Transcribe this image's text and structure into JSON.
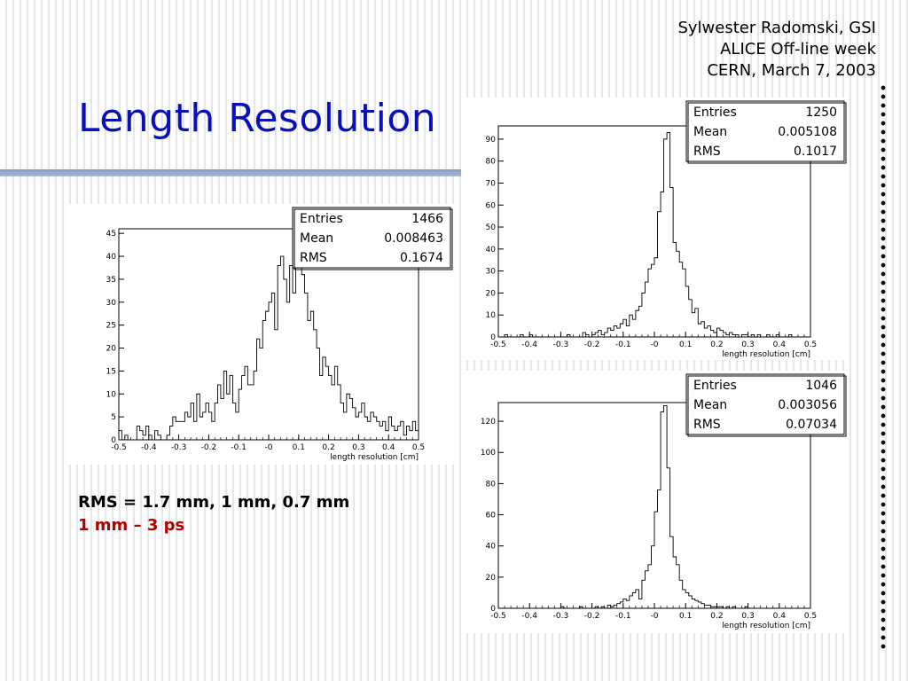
{
  "slide": {
    "title": "Length Resolution",
    "credits": [
      "Sylwester Radomski, GSI",
      "ALICE Off-line week",
      "CERN, March 7, 2003"
    ],
    "summary": [
      "RMS = 1.7 mm, 1 mm, 0.7 mm",
      "1 mm – 3 ps"
    ],
    "colors": {
      "title": "#0a10b8",
      "highlight": "#b00000",
      "bar": "#7f9cbf"
    }
  },
  "chart_data": [
    {
      "type": "histogram",
      "xlabel": "length resolution [cm]",
      "xlim": [
        -0.5,
        0.5
      ],
      "ylim": [
        0,
        46
      ],
      "xticks": [
        "-0.5",
        "-0.4",
        "-0.3",
        "-0.2",
        "-0.1",
        "-0",
        "0.1",
        "0.2",
        "0.3",
        "0.4",
        "0.5"
      ],
      "yticks": [
        "0",
        "5",
        "10",
        "15",
        "20",
        "25",
        "30",
        "35",
        "40",
        "45"
      ],
      "stats": [
        [
          "Entries",
          "1466"
        ],
        [
          "Mean",
          "0.008463"
        ],
        [
          "RMS",
          "0.1674"
        ]
      ],
      "bin_width": 0.01,
      "values": [
        2,
        0,
        1,
        0,
        0,
        0,
        3,
        2,
        1,
        3,
        1,
        0,
        2,
        1,
        0,
        0,
        1,
        3,
        5,
        4,
        4,
        4,
        6,
        5,
        8,
        4,
        10,
        5,
        6,
        8,
        6,
        4,
        8,
        12,
        9,
        15,
        10,
        14,
        8,
        6,
        11,
        14,
        16,
        12,
        12,
        15,
        22,
        20,
        26,
        28,
        30,
        32,
        24,
        38,
        40,
        35,
        30,
        38,
        32,
        38,
        43,
        36,
        32,
        26,
        28,
        24,
        20,
        14,
        18,
        16,
        14,
        12,
        16,
        12,
        8,
        6,
        10,
        9,
        7,
        5,
        6,
        8,
        5,
        4,
        6,
        5,
        4,
        3,
        4,
        2,
        5,
        3,
        2,
        3,
        4,
        1,
        3,
        2,
        4,
        2
      ]
    },
    {
      "type": "histogram",
      "xlabel": "length resolution [cm]",
      "xlim": [
        -0.5,
        0.5
      ],
      "ylim": [
        0,
        96
      ],
      "xticks": [
        "-0.5",
        "-0.4",
        "-0.3",
        "-0.2",
        "-0.1",
        "-0",
        "0.1",
        "0.2",
        "0.3",
        "0.4",
        "0.5"
      ],
      "yticks": [
        "0",
        "10",
        "20",
        "30",
        "40",
        "50",
        "60",
        "70",
        "80",
        "90"
      ],
      "stats": [
        [
          "Entries",
          "1250"
        ],
        [
          "Mean",
          "0.005108"
        ],
        [
          "RMS",
          "0.1017"
        ]
      ],
      "bin_width": 0.01,
      "values": [
        0,
        0,
        1,
        0,
        0,
        0,
        0,
        1,
        0,
        0,
        1,
        0,
        0,
        0,
        0,
        0,
        0,
        0,
        0,
        0,
        0,
        0,
        1,
        0,
        0,
        0,
        0,
        2,
        1,
        0,
        1,
        2,
        3,
        1,
        2,
        4,
        3,
        5,
        4,
        6,
        8,
        5,
        10,
        8,
        12,
        14,
        20,
        25,
        31,
        33,
        36,
        57,
        66,
        90,
        93,
        68,
        43,
        39,
        34,
        31,
        23,
        17,
        11,
        13,
        6,
        7,
        4,
        5,
        3,
        2,
        4,
        3,
        2,
        1,
        2,
        1,
        1,
        0,
        1,
        1,
        0,
        1,
        0,
        1,
        0,
        0,
        1,
        0,
        0,
        1,
        0,
        0,
        0,
        1,
        0,
        0,
        0,
        0,
        0,
        0
      ]
    },
    {
      "type": "histogram",
      "xlabel": "length resolution [cm]",
      "xlim": [
        -0.5,
        0.5
      ],
      "ylim": [
        0,
        132
      ],
      "xticks": [
        "-0.5",
        "-0.4",
        "-0.3",
        "-0.2",
        "-0.1",
        "-0",
        "0.1",
        "0.2",
        "0.3",
        "0.4",
        "0.5"
      ],
      "yticks": [
        "0",
        "20",
        "40",
        "60",
        "80",
        "100",
        "120"
      ],
      "stats": [
        [
          "Entries",
          "1046"
        ],
        [
          "Mean",
          "0.003056"
        ],
        [
          "RMS",
          "0.07034"
        ]
      ],
      "bin_width": 0.01,
      "values": [
        0,
        0,
        0,
        0,
        0,
        0,
        0,
        0,
        0,
        0,
        0,
        0,
        0,
        0,
        0,
        0,
        0,
        0,
        0,
        0,
        1,
        0,
        0,
        0,
        0,
        0,
        1,
        0,
        0,
        0,
        0,
        1,
        0,
        1,
        0,
        2,
        1,
        2,
        3,
        4,
        6,
        5,
        8,
        10,
        12,
        6,
        18,
        24,
        28,
        40,
        62,
        76,
        126,
        130,
        90,
        46,
        33,
        28,
        18,
        12,
        10,
        8,
        6,
        5,
        4,
        3,
        2,
        2,
        1,
        1,
        1,
        1,
        0,
        1,
        0,
        1,
        0,
        0,
        0,
        1,
        0,
        0,
        0,
        0,
        0,
        0,
        0,
        0,
        0,
        0,
        0,
        0,
        0,
        0,
        0,
        0,
        0,
        0,
        0,
        0
      ]
    }
  ]
}
